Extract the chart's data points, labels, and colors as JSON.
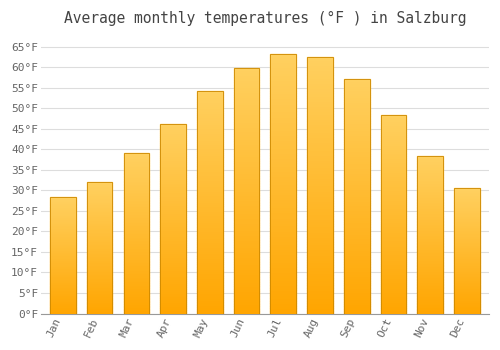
{
  "title": "Average monthly temperatures (°F ) in Salzburg",
  "months": [
    "Jan",
    "Feb",
    "Mar",
    "Apr",
    "May",
    "Jun",
    "Jul",
    "Aug",
    "Sep",
    "Oct",
    "Nov",
    "Dec"
  ],
  "values": [
    28.3,
    32.0,
    39.0,
    46.2,
    54.3,
    59.9,
    63.1,
    62.4,
    57.2,
    48.4,
    38.3,
    30.5
  ],
  "bar_color_top": "#FFD060",
  "bar_color_bottom": "#FFA500",
  "bar_edge_color": "#CC8800",
  "background_color": "#FFFFFF",
  "plot_bg_color": "#FFFFFF",
  "grid_color": "#DDDDDD",
  "title_color": "#444444",
  "tick_label_color": "#666666",
  "ylim": [
    0,
    68
  ],
  "ytick_step": 5,
  "title_fontsize": 10.5,
  "tick_fontsize": 8,
  "bar_width": 0.7
}
